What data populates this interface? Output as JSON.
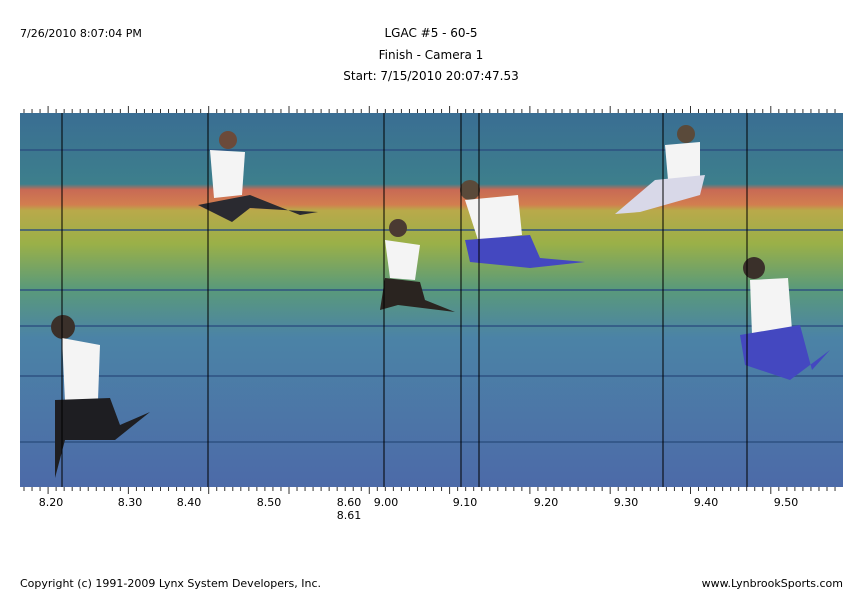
{
  "header": {
    "timestamp": "7/26/2010 8:07:04 PM",
    "title": "LGAC #5 - 60-5",
    "subtitle": "Finish - Camera 1",
    "start": "Start: 7/15/2010 20:07:47.53"
  },
  "time_axis": {
    "labels": [
      "8.20",
      "8.30",
      "8.40",
      "8.50",
      "8.60",
      "8.61",
      "9.00",
      "9.10",
      "9.20",
      "9.30",
      "9.40",
      "9.50"
    ]
  },
  "footer": {
    "copyright": "Copyright (c) 1991-2009 Lynx System Developers, Inc.",
    "website": "www.LynbrookSports.com"
  }
}
